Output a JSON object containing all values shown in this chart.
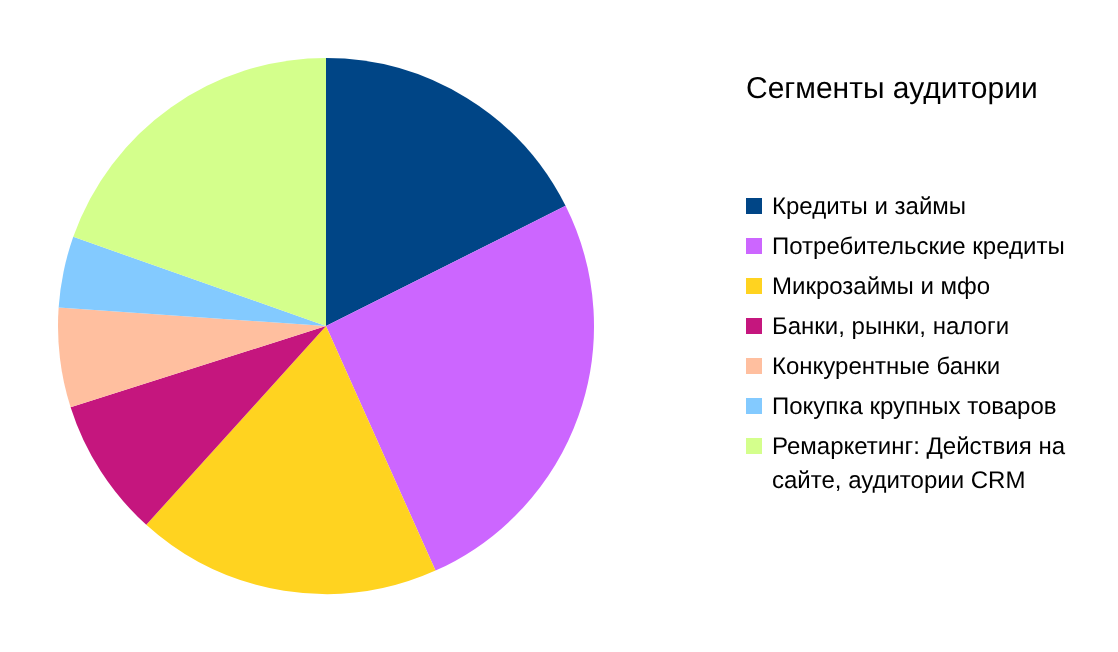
{
  "chart_data": {
    "type": "pie",
    "legend_title": "Сегменты аудитории",
    "legend": "right",
    "categories": [
      "Кредиты и займы",
      "Потребительские кредиты",
      "Микрозаймы и мфо",
      "Банки, рынки, налоги",
      "Конкурентные банки",
      "Покупка крупных товаров",
      "Ремаркетинг: Действия на сайте, аудитории CRM"
    ],
    "values": [
      17.6,
      25.7,
      18.4,
      8.4,
      6.0,
      4.3,
      19.6
    ],
    "colors": [
      "#004586",
      "#cc66ff",
      "#ffd320",
      "#c5167e",
      "#ffbf9f",
      "#83caff",
      "#d4ff8c"
    ]
  }
}
